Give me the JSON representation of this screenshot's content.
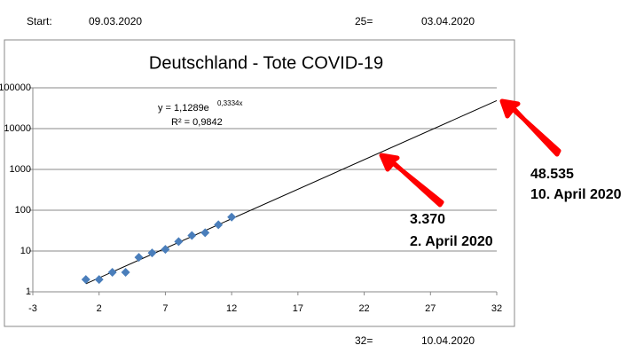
{
  "sheet": {
    "start_label": "Start:",
    "start_date": "09.03.2020",
    "day25_label": "25=",
    "day25_date": "03.04.2020",
    "day32_label": "32=",
    "day32_date": "10.04.2020"
  },
  "chart_data": {
    "type": "scatter",
    "title": "Deutschland - Tote COVID-19",
    "series": [
      {
        "name": "Tote",
        "color": "#4a7ebb",
        "x": [
          1,
          2,
          3,
          4,
          5,
          6,
          7,
          8,
          9,
          10,
          11,
          12
        ],
        "values": [
          2,
          2,
          3,
          3,
          7,
          9,
          11,
          17,
          24,
          28,
          44,
          68
        ]
      }
    ],
    "trendline": {
      "color": "#000000",
      "x": [
        1,
        32
      ],
      "values": [
        1.576,
        48535
      ],
      "equation": "y = 1,1289e",
      "exponent": "0,3334x",
      "r2_label": "R² = 0,9842"
    },
    "xlim": [
      -3,
      32
    ],
    "xticks": [
      -3,
      2,
      7,
      12,
      17,
      22,
      27,
      32
    ],
    "ylim": [
      1,
      100000
    ],
    "yticks": [
      1,
      10,
      100,
      1000,
      10000,
      100000
    ],
    "ylog": true,
    "grid": true,
    "annotations": [
      {
        "value_text": "48.535",
        "date_text": "10. April 2020"
      },
      {
        "value_text": "3.370",
        "date_text": "2. April 2020"
      }
    ]
  }
}
